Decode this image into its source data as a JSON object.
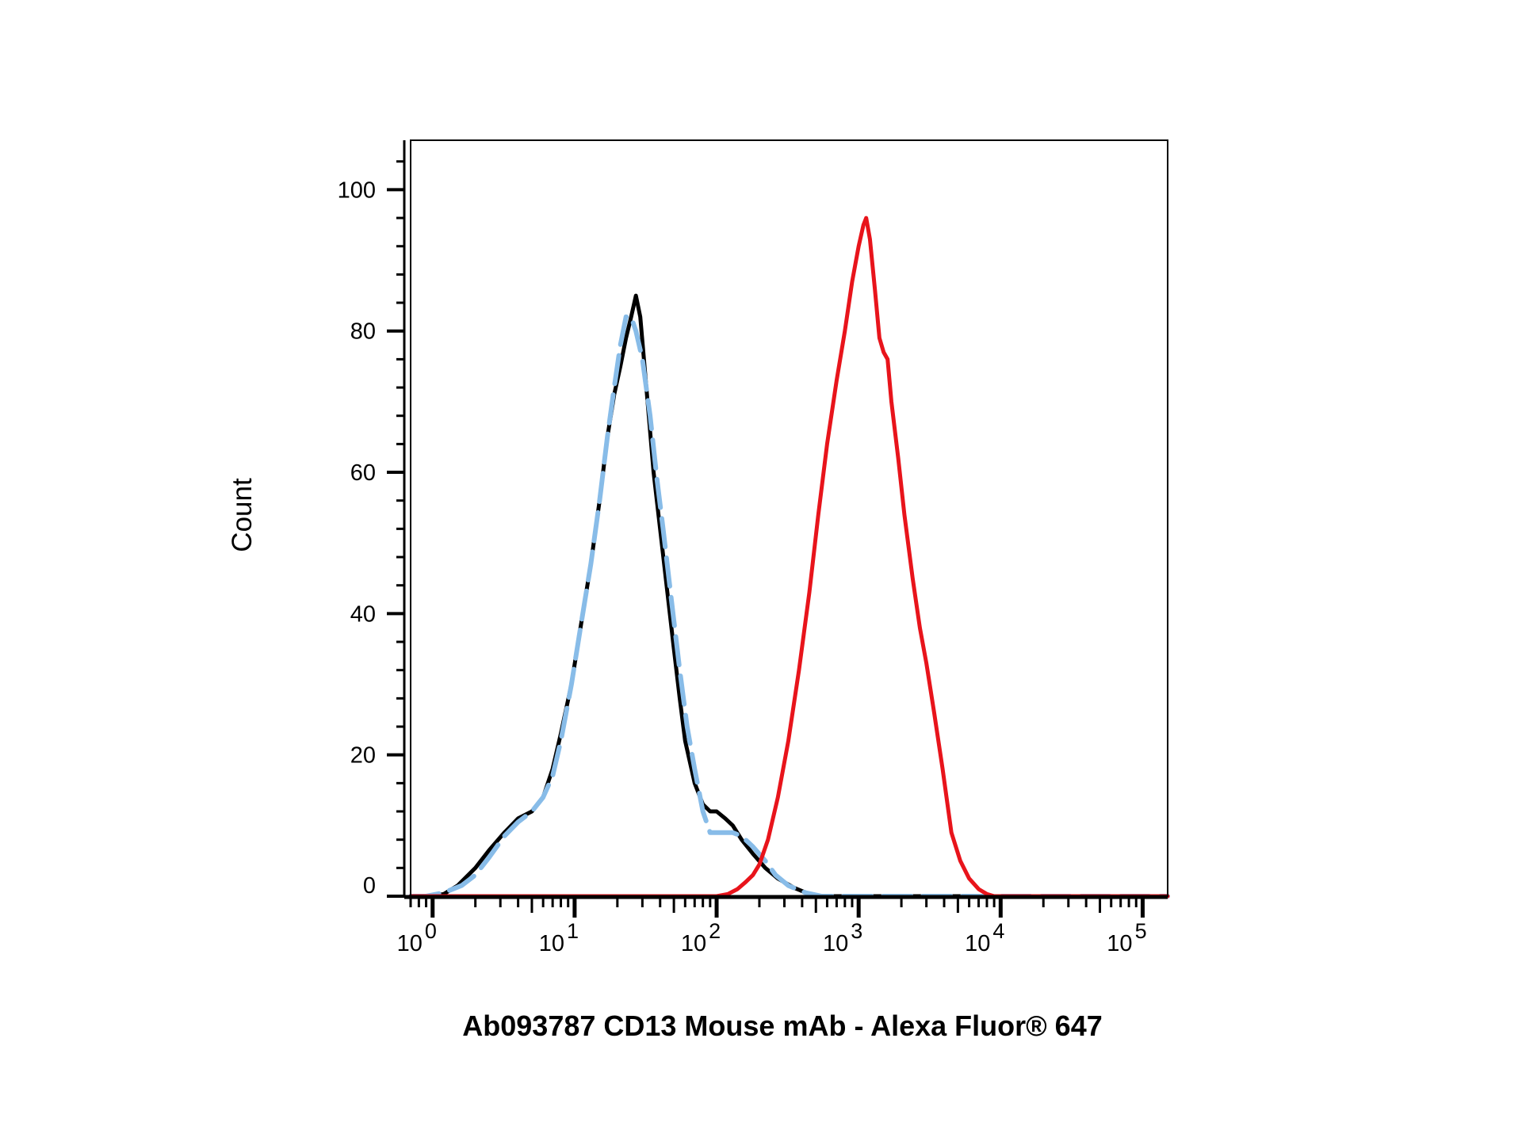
{
  "chart_data": {
    "type": "line",
    "title": "",
    "xlabel": "Ab093787 CD13 Mouse mAb - Alexa Fluor® 647",
    "ylabel": "Count",
    "x_scale": "log",
    "xlim": [
      0.7,
      150000
    ],
    "ylim": [
      0,
      107
    ],
    "grid": false,
    "legend": "none",
    "y_ticks": [
      {
        "value": 0,
        "label": "0"
      },
      {
        "value": 20,
        "label": "20"
      },
      {
        "value": 40,
        "label": "40"
      },
      {
        "value": 60,
        "label": "60"
      },
      {
        "value": 80,
        "label": "80"
      },
      {
        "value": 100,
        "label": "100"
      }
    ],
    "x_ticks": [
      {
        "value": 1,
        "base": "10",
        "exp": "0"
      },
      {
        "value": 10,
        "base": "10",
        "exp": "1"
      },
      {
        "value": 100,
        "base": "10",
        "exp": "2"
      },
      {
        "value": 1000,
        "base": "10",
        "exp": "3"
      },
      {
        "value": 10000,
        "base": "10",
        "exp": "4"
      },
      {
        "value": 100000,
        "base": "10",
        "exp": "5"
      }
    ],
    "series": [
      {
        "color": "#000000",
        "style": "solid",
        "points": [
          [
            0.7,
            0
          ],
          [
            0.9,
            0
          ],
          [
            1.2,
            0.3
          ],
          [
            1.5,
            1.5
          ],
          [
            2.0,
            4
          ],
          [
            2.5,
            6.5
          ],
          [
            3.2,
            9
          ],
          [
            4.0,
            11
          ],
          [
            5.0,
            12
          ],
          [
            6.0,
            14
          ],
          [
            7.0,
            18
          ],
          [
            8.0,
            23
          ],
          [
            9.5,
            30
          ],
          [
            11,
            38
          ],
          [
            13,
            47
          ],
          [
            15,
            56
          ],
          [
            17,
            65
          ],
          [
            19,
            71
          ],
          [
            21,
            75
          ],
          [
            23,
            79
          ],
          [
            25,
            82
          ],
          [
            27,
            85
          ],
          [
            29,
            82
          ],
          [
            32,
            72
          ],
          [
            36,
            60
          ],
          [
            40,
            52
          ],
          [
            45,
            43
          ],
          [
            50,
            35
          ],
          [
            55,
            28
          ],
          [
            60,
            22
          ],
          [
            70,
            16
          ],
          [
            80,
            13
          ],
          [
            90,
            12
          ],
          [
            100,
            12
          ],
          [
            115,
            11
          ],
          [
            130,
            10
          ],
          [
            150,
            8
          ],
          [
            180,
            6
          ],
          [
            220,
            4
          ],
          [
            270,
            2.5
          ],
          [
            350,
            1.2
          ],
          [
            450,
            0.3
          ],
          [
            550,
            0
          ],
          [
            1000,
            0
          ],
          [
            150000,
            0
          ]
        ]
      },
      {
        "color": "#88bce8",
        "style": "dashed",
        "points": [
          [
            0.7,
            0
          ],
          [
            0.9,
            0
          ],
          [
            1.2,
            0.5
          ],
          [
            1.6,
            1.5
          ],
          [
            2.0,
            3
          ],
          [
            2.5,
            5.5
          ],
          [
            3.2,
            8.5
          ],
          [
            4.0,
            10.5
          ],
          [
            5.0,
            12
          ],
          [
            6.0,
            14
          ],
          [
            7.0,
            17
          ],
          [
            8.0,
            22
          ],
          [
            9.5,
            30
          ],
          [
            11,
            38
          ],
          [
            13,
            47
          ],
          [
            15,
            56
          ],
          [
            17,
            65
          ],
          [
            19,
            72
          ],
          [
            21,
            78
          ],
          [
            23,
            82
          ],
          [
            25,
            82
          ],
          [
            27,
            80
          ],
          [
            30,
            76
          ],
          [
            34,
            68
          ],
          [
            38,
            59
          ],
          [
            42,
            52
          ],
          [
            48,
            42
          ],
          [
            55,
            32
          ],
          [
            62,
            24
          ],
          [
            70,
            18
          ],
          [
            80,
            12
          ],
          [
            90,
            9
          ],
          [
            100,
            9
          ],
          [
            115,
            9
          ],
          [
            130,
            9
          ],
          [
            150,
            8.5
          ],
          [
            180,
            7
          ],
          [
            220,
            5
          ],
          [
            260,
            3
          ],
          [
            320,
            1.5
          ],
          [
            420,
            0.5
          ],
          [
            550,
            0
          ],
          [
            1000,
            0
          ],
          [
            150000,
            0
          ]
        ]
      },
      {
        "color": "#e8141b",
        "style": "solid",
        "points": [
          [
            0.7,
            0
          ],
          [
            100,
            0
          ],
          [
            120,
            0.3
          ],
          [
            140,
            1
          ],
          [
            160,
            2
          ],
          [
            180,
            3
          ],
          [
            200,
            4.5
          ],
          [
            230,
            8
          ],
          [
            270,
            14
          ],
          [
            320,
            22
          ],
          [
            380,
            32
          ],
          [
            450,
            43
          ],
          [
            520,
            54
          ],
          [
            600,
            64
          ],
          [
            700,
            73
          ],
          [
            800,
            80
          ],
          [
            900,
            87
          ],
          [
            1000,
            92
          ],
          [
            1080,
            95
          ],
          [
            1130,
            96
          ],
          [
            1200,
            93
          ],
          [
            1300,
            86
          ],
          [
            1400,
            79
          ],
          [
            1500,
            77
          ],
          [
            1600,
            76
          ],
          [
            1700,
            70
          ],
          [
            1900,
            62
          ],
          [
            2100,
            54
          ],
          [
            2400,
            45
          ],
          [
            2700,
            38
          ],
          [
            3000,
            33
          ],
          [
            3400,
            26
          ],
          [
            3900,
            18
          ],
          [
            4500,
            9
          ],
          [
            5200,
            5
          ],
          [
            6000,
            2.5
          ],
          [
            7000,
            1
          ],
          [
            8000,
            0.3
          ],
          [
            9000,
            0
          ],
          [
            150000,
            0
          ]
        ]
      }
    ]
  }
}
